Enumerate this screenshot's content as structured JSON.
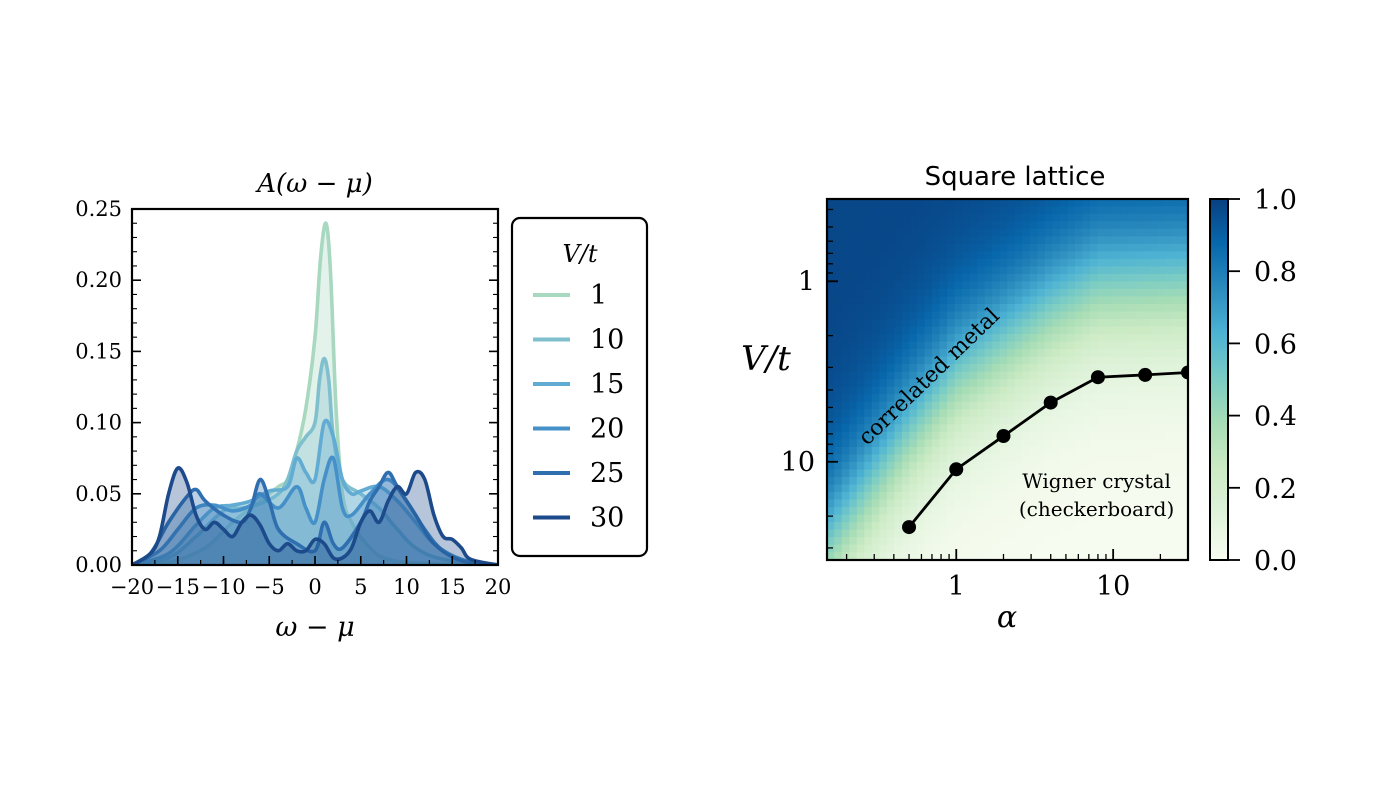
{
  "chart_data": [
    {
      "type": "area",
      "title": "A(ω − μ)",
      "xlabel": "ω − μ",
      "ylabel": "",
      "xlim": [
        -20,
        20
      ],
      "ylim": [
        0,
        0.25
      ],
      "xticks": [
        "−20",
        "−15",
        "−10",
        "−5",
        "0",
        "5",
        "10",
        "15",
        "20"
      ],
      "xtick_values": [
        -20,
        -15,
        -10,
        -5,
        0,
        5,
        10,
        15,
        20
      ],
      "yticks": [
        "0.00",
        "0.05",
        "0.10",
        "0.15",
        "0.20",
        "0.25"
      ],
      "ytick_values": [
        0,
        0.05,
        0.1,
        0.15,
        0.2,
        0.25
      ],
      "legend": {
        "title": "V/t",
        "placement": "outside-right"
      },
      "series": [
        {
          "name": "1",
          "color": "#a8d8c0",
          "points": [
            [
              -20,
              0
            ],
            [
              -16,
              0.002
            ],
            [
              -12,
              0.012
            ],
            [
              -9,
              0.03
            ],
            [
              -6,
              0.045
            ],
            [
              -4,
              0.055
            ],
            [
              -3,
              0.06
            ],
            [
              -2,
              0.08
            ],
            [
              -1,
              0.11
            ],
            [
              0,
              0.16
            ],
            [
              0.6,
              0.215
            ],
            [
              1.2,
              0.24
            ],
            [
              1.7,
              0.205
            ],
            [
              2.3,
              0.11
            ],
            [
              3,
              0.05
            ],
            [
              4,
              0.03
            ],
            [
              6,
              0.012
            ],
            [
              8,
              0.004
            ],
            [
              12,
              0.001
            ],
            [
              20,
              0
            ]
          ]
        },
        {
          "name": "10",
          "color": "#7fbfce",
          "points": [
            [
              -20,
              0
            ],
            [
              -16,
              0.005
            ],
            [
              -13,
              0.02
            ],
            [
              -10,
              0.038
            ],
            [
              -8,
              0.04
            ],
            [
              -6,
              0.043
            ],
            [
              -4,
              0.05
            ],
            [
              -3,
              0.06
            ],
            [
              -2,
              0.08
            ],
            [
              -1,
              0.09
            ],
            [
              0,
              0.1
            ],
            [
              0.5,
              0.13
            ],
            [
              1,
              0.145
            ],
            [
              1.5,
              0.13
            ],
            [
              2,
              0.09
            ],
            [
              3,
              0.06
            ],
            [
              5,
              0.05
            ],
            [
              7,
              0.04
            ],
            [
              9,
              0.025
            ],
            [
              11,
              0.012
            ],
            [
              14,
              0.004
            ],
            [
              20,
              0
            ]
          ]
        },
        {
          "name": "15",
          "color": "#62acd3",
          "points": [
            [
              -20,
              0
            ],
            [
              -16,
              0.008
            ],
            [
              -13,
              0.028
            ],
            [
              -11,
              0.04
            ],
            [
              -9,
              0.042
            ],
            [
              -7,
              0.045
            ],
            [
              -5,
              0.052
            ],
            [
              -3,
              0.055
            ],
            [
              -2,
              0.075
            ],
            [
              -1,
              0.065
            ],
            [
              0,
              0.06
            ],
            [
              1,
              0.1
            ],
            [
              2,
              0.09
            ],
            [
              3,
              0.06
            ],
            [
              4,
              0.05
            ],
            [
              5,
              0.052
            ],
            [
              7,
              0.055
            ],
            [
              9,
              0.045
            ],
            [
              11,
              0.03
            ],
            [
              13,
              0.015
            ],
            [
              16,
              0.004
            ],
            [
              20,
              0
            ]
          ]
        },
        {
          "name": "20",
          "color": "#4590c8",
          "points": [
            [
              -20,
              0
            ],
            [
              -17,
              0.01
            ],
            [
              -15,
              0.025
            ],
            [
              -13,
              0.04
            ],
            [
              -11,
              0.042
            ],
            [
              -9,
              0.038
            ],
            [
              -7,
              0.042
            ],
            [
              -6,
              0.05
            ],
            [
              -4,
              0.04
            ],
            [
              -2,
              0.055
            ],
            [
              -1,
              0.04
            ],
            [
              0,
              0.03
            ],
            [
              1,
              0.06
            ],
            [
              2,
              0.075
            ],
            [
              3,
              0.04
            ],
            [
              4,
              0.035
            ],
            [
              6,
              0.05
            ],
            [
              8,
              0.06
            ],
            [
              10,
              0.045
            ],
            [
              12,
              0.025
            ],
            [
              14,
              0.01
            ],
            [
              17,
              0.002
            ],
            [
              20,
              0
            ]
          ]
        },
        {
          "name": "25",
          "color": "#2f6fb0",
          "points": [
            [
              -20,
              0
            ],
            [
              -18,
              0.008
            ],
            [
              -16,
              0.03
            ],
            [
              -14,
              0.048
            ],
            [
              -13,
              0.053
            ],
            [
              -12,
              0.045
            ],
            [
              -10,
              0.035
            ],
            [
              -8,
              0.03
            ],
            [
              -7,
              0.04
            ],
            [
              -6,
              0.06
            ],
            [
              -5,
              0.045
            ],
            [
              -4,
              0.025
            ],
            [
              -2,
              0.015
            ],
            [
              0,
              0.01
            ],
            [
              1,
              0.03
            ],
            [
              2,
              0.015
            ],
            [
              3,
              0.012
            ],
            [
              5,
              0.03
            ],
            [
              6,
              0.045
            ],
            [
              7,
              0.055
            ],
            [
              8,
              0.065
            ],
            [
              9,
              0.055
            ],
            [
              11,
              0.035
            ],
            [
              13,
              0.015
            ],
            [
              16,
              0.003
            ],
            [
              20,
              0
            ]
          ]
        },
        {
          "name": "30",
          "color": "#1d4a8a",
          "points": [
            [
              -20,
              0
            ],
            [
              -18,
              0.008
            ],
            [
              -17,
              0.02
            ],
            [
              -16,
              0.05
            ],
            [
              -15,
              0.068
            ],
            [
              -14,
              0.058
            ],
            [
              -13,
              0.035
            ],
            [
              -12,
              0.025
            ],
            [
              -11,
              0.03
            ],
            [
              -10,
              0.025
            ],
            [
              -9,
              0.02
            ],
            [
              -8,
              0.03
            ],
            [
              -7,
              0.035
            ],
            [
              -6,
              0.028
            ],
            [
              -5,
              0.015
            ],
            [
              -4,
              0.01
            ],
            [
              -3,
              0.015
            ],
            [
              -2,
              0.01
            ],
            [
              -1,
              0.01
            ],
            [
              0,
              0.018
            ],
            [
              1,
              0.015
            ],
            [
              2,
              0.005
            ],
            [
              3,
              0.005
            ],
            [
              4,
              0.012
            ],
            [
              5,
              0.03
            ],
            [
              6,
              0.038
            ],
            [
              7,
              0.03
            ],
            [
              8,
              0.045
            ],
            [
              9,
              0.055
            ],
            [
              10,
              0.05
            ],
            [
              11,
              0.065
            ],
            [
              12,
              0.06
            ],
            [
              13,
              0.035
            ],
            [
              14,
              0.02
            ],
            [
              15,
              0.018
            ],
            [
              16,
              0.012
            ],
            [
              17,
              0.004
            ],
            [
              20,
              0
            ]
          ]
        }
      ]
    },
    {
      "type": "heatmap",
      "title": "Square lattice",
      "xlabel": "α",
      "ylabel": "V/t",
      "xscale": "log",
      "yscale": "log",
      "yaxis": "inverted",
      "xlim": [
        0.15,
        30
      ],
      "ylim": [
        0.35,
        35
      ],
      "xticks": [
        "1",
        "10"
      ],
      "xtick_values": [
        1,
        10
      ],
      "yticks": [
        "1",
        "10"
      ],
      "ytick_values": [
        1,
        10
      ],
      "colorbar": {
        "ticks": [
          "0.0",
          "0.2",
          "0.4",
          "0.6",
          "0.8",
          "1.0"
        ],
        "tick_values": [
          0,
          0.2,
          0.4,
          0.6,
          0.8,
          1.0
        ],
        "range": [
          0,
          1
        ],
        "colors": [
          "#f7fcf0",
          "#e0f3db",
          "#ccebc5",
          "#a8ddb5",
          "#7bccc4",
          "#4eb3d3",
          "#2b8cbe",
          "#0868ac",
          "#084081"
        ]
      },
      "boundary": {
        "color": "#000000",
        "points": [
          [
            0.5,
            23
          ],
          [
            1,
            11
          ],
          [
            2,
            7.2
          ],
          [
            4,
            4.7
          ],
          [
            8,
            3.4
          ],
          [
            16,
            3.3
          ],
          [
            30,
            3.2
          ]
        ]
      },
      "annotations": [
        {
          "text": "correlated metal",
          "x": 0.72,
          "y": 3.6
        },
        {
          "text": "Wigner crystal",
          "x": 12,
          "y": 14
        },
        {
          "text": "(checkerboard)",
          "x": 12,
          "y": 20
        }
      ]
    }
  ]
}
